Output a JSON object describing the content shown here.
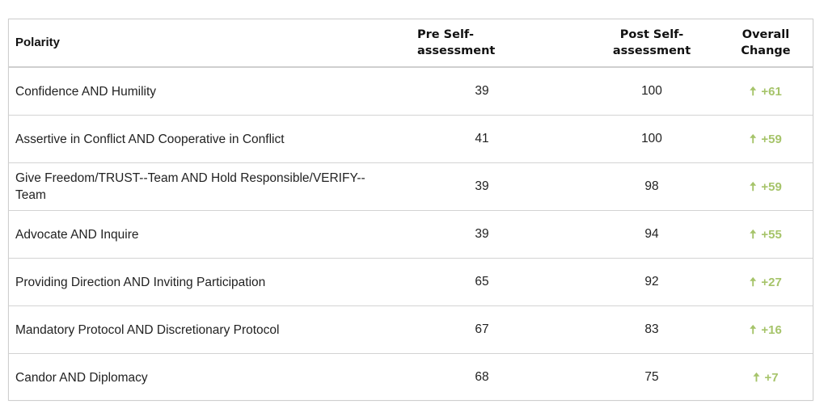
{
  "table": {
    "headers": {
      "polarity": "Polarity",
      "pre": "Pre Self-assessment",
      "post": "Post Self-assessment",
      "change": "Overall Change"
    },
    "rows": [
      {
        "polarity": "Confidence AND Humility",
        "pre": "39",
        "post": "100",
        "change": "+61"
      },
      {
        "polarity": "Assertive in Conflict AND Cooperative in Conflict",
        "pre": "41",
        "post": "100",
        "change": "+59"
      },
      {
        "polarity": "Give Freedom/TRUST--Team AND Hold Responsible/VERIFY--Team",
        "pre": "39",
        "post": "98",
        "change": "+59"
      },
      {
        "polarity": "Advocate AND Inquire",
        "pre": "39",
        "post": "94",
        "change": "+55"
      },
      {
        "polarity": "Providing Direction AND Inviting Participation",
        "pre": "65",
        "post": "92",
        "change": "+27"
      },
      {
        "polarity": "Mandatory Protocol AND Discretionary Protocol",
        "pre": "67",
        "post": "83",
        "change": "+16"
      },
      {
        "polarity": "Candor AND Diplomacy",
        "pre": "68",
        "post": "75",
        "change": "+7"
      }
    ],
    "icons": {
      "change": "arrow-up-icon"
    },
    "colors": {
      "change": "#a6c46a",
      "border": "#cfcfcf",
      "text": "#222222"
    }
  }
}
